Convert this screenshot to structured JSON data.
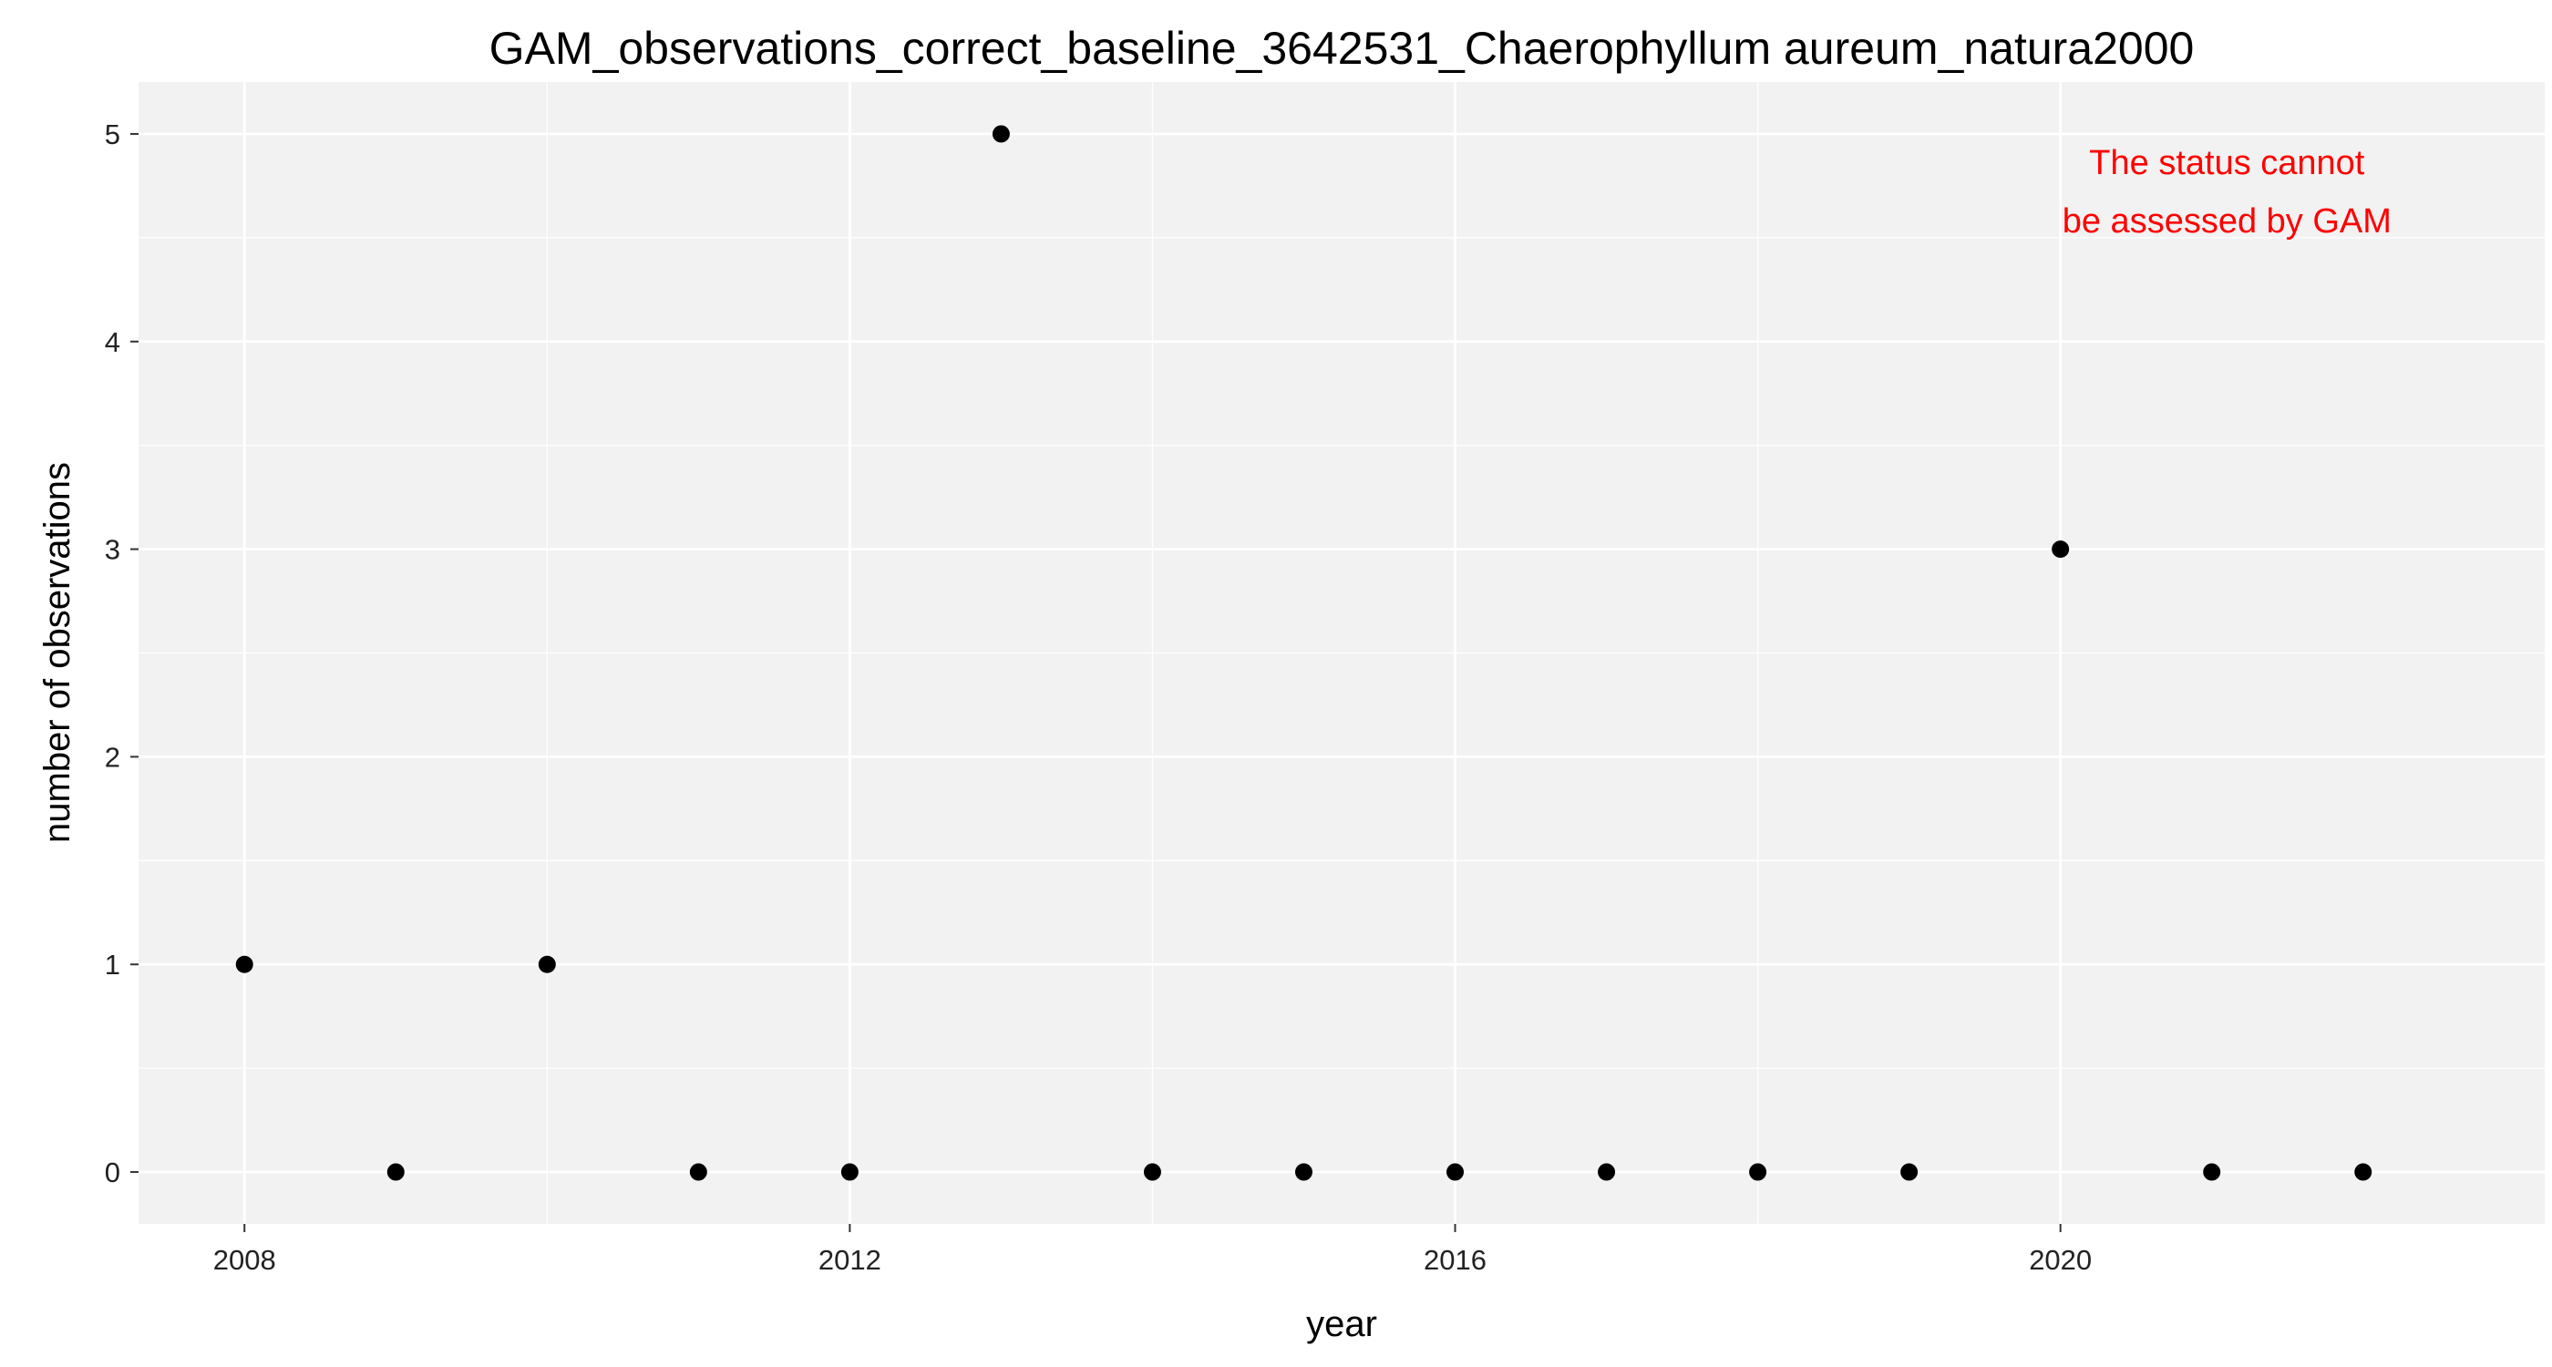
{
  "chart_data": {
    "type": "scatter",
    "title": "GAM_observations_correct_baseline_3642531_Chaerophyllum aureum_natura2000",
    "xlabel": "year",
    "ylabel": "number of observations",
    "xlim": [
      2007.3,
      2023.2
    ],
    "ylim": [
      -0.25,
      5.25
    ],
    "xticks": [
      2008,
      2012,
      2016,
      2020
    ],
    "yticks": [
      0,
      1,
      2,
      3,
      4,
      5
    ],
    "grid": true,
    "legend": "none",
    "point_color": "#000000",
    "panel_background": "#f2f2f2",
    "annotation": {
      "lines": [
        "The status cannot",
        "be assessed by GAM"
      ],
      "color": "#ff0000",
      "placement": "top-right"
    },
    "points": [
      {
        "x": 2008,
        "y": 1
      },
      {
        "x": 2009,
        "y": 0
      },
      {
        "x": 2010,
        "y": 1
      },
      {
        "x": 2011,
        "y": 0
      },
      {
        "x": 2012,
        "y": 0
      },
      {
        "x": 2013,
        "y": 5
      },
      {
        "x": 2014,
        "y": 0
      },
      {
        "x": 2015,
        "y": 0
      },
      {
        "x": 2016,
        "y": 0
      },
      {
        "x": 2017,
        "y": 0
      },
      {
        "x": 2018,
        "y": 0
      },
      {
        "x": 2019,
        "y": 0
      },
      {
        "x": 2020,
        "y": 3
      },
      {
        "x": 2021,
        "y": 0
      },
      {
        "x": 2022,
        "y": 0
      }
    ]
  }
}
